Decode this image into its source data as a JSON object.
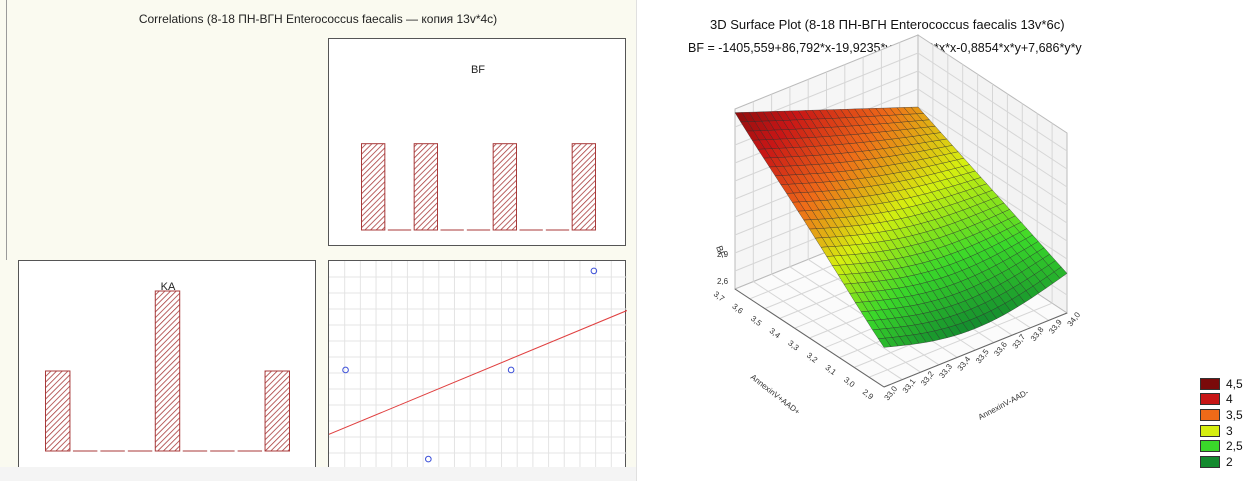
{
  "left": {
    "title": "Correlations (8-18 ПН-ВГН Enterococcus faecalis — копия 13v*4c)"
  },
  "right": {
    "title": "3D Surface Plot (8-18 ПН-ВГН Enterococcus faecalis 13v*6c)",
    "equation": "BF = -1405,559+86,792*x-19,9235*y-1,2649*x*x-0,8854*x*y+7,686*y*y"
  },
  "chart_data": [
    {
      "type": "bar",
      "title": "BF",
      "bin_count": 9,
      "values": [
        1,
        0,
        1,
        0,
        0,
        1,
        0,
        0,
        1
      ],
      "ylim": [
        0,
        1.9
      ],
      "color": "#a83a3a"
    },
    {
      "type": "bar",
      "title": "KA",
      "bin_count": 9,
      "values": [
        1,
        0,
        0,
        0,
        2,
        0,
        0,
        0,
        1
      ],
      "ylim": [
        0,
        2.1
      ],
      "color": "#a83a3a"
    },
    {
      "type": "scatter",
      "points": [
        {
          "x": 0.1,
          "y": 0.45
        },
        {
          "x": 1.1,
          "y": -0.45
        },
        {
          "x": 2.1,
          "y": 0.45
        },
        {
          "x": 3.1,
          "y": 1.45
        }
      ],
      "regression_line": {
        "x": [
          -0.1,
          3.5
        ],
        "y": [
          -0.2,
          1.05
        ]
      },
      "xlim": [
        -0.1,
        3.5
      ],
      "ylim": [
        -0.55,
        1.55
      ],
      "grid": true,
      "point_color": "#3a4ed8",
      "line_color": "#e04040"
    },
    {
      "type": "surface",
      "title": "3D Surface Plot (8-18 ПН-ВГН Enterococcus faecalis 13v*6c)",
      "z_label": "BF",
      "x_label": "AnnexinV-AAD-",
      "y_label": "AnnexinV+AAD+",
      "x_ticks": [
        "33,0",
        "33,1",
        "33,2",
        "33,3",
        "33,4",
        "33,5",
        "33,6",
        "33,7",
        "33,8",
        "33,9",
        "34,0"
      ],
      "y_ticks": [
        "2,9",
        "3,0",
        "3,1",
        "3,2",
        "3,3",
        "3,4",
        "3,5",
        "3,6",
        "3,7"
      ],
      "z_ticks": [
        "2,6",
        "2,9"
      ],
      "legend": {
        "position": "bottom-right",
        "entries": [
          {
            "label": "4,5",
            "color": "#7a0a0a"
          },
          {
            "label": "4",
            "color": "#c81616"
          },
          {
            "label": "3,5",
            "color": "#ee6a18"
          },
          {
            "label": "3",
            "color": "#d6ef10"
          },
          {
            "label": "2,5",
            "color": "#3ad82a"
          },
          {
            "label": "2",
            "color": "#138a2e"
          }
        ]
      }
    }
  ]
}
